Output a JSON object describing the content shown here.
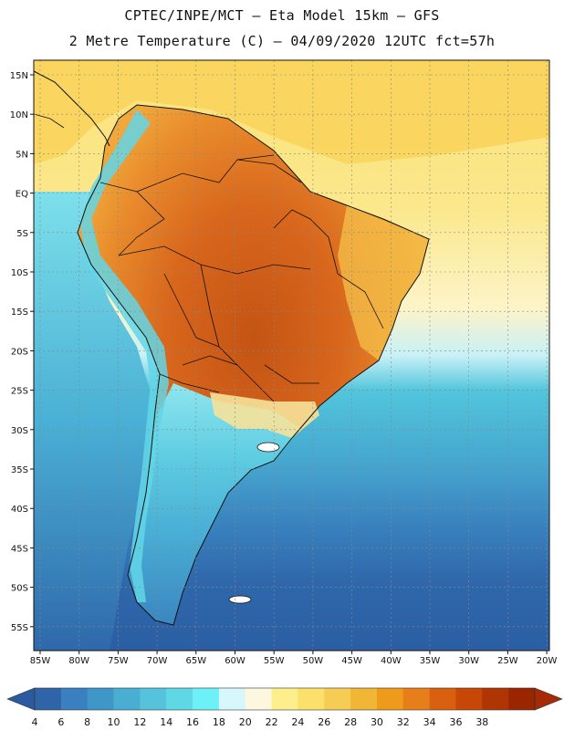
{
  "header": {
    "line1": "CPTEC/INPE/MCT –  Eta Model 15km – GFS",
    "line2": "2 Metre Temperature (C) – 04/09/2020 12UTC fct=57h"
  },
  "lat_labels": [
    "15N",
    "10N",
    "5N",
    "EQ",
    "5S",
    "10S",
    "15S",
    "20S",
    "25S",
    "30S",
    "35S",
    "40S",
    "45S",
    "50S",
    "55S"
  ],
  "lon_labels": [
    "85W",
    "80W",
    "75W",
    "70W",
    "65W",
    "60W",
    "55W",
    "50W",
    "45W",
    "40W",
    "35W",
    "30W",
    "25W",
    "20W"
  ],
  "colorbar": {
    "ticks": [
      "4",
      "6",
      "8",
      "10",
      "12",
      "14",
      "16",
      "18",
      "20",
      "22",
      "24",
      "26",
      "28",
      "30",
      "32",
      "34",
      "36",
      "38"
    ],
    "colors": [
      "#2f65a8",
      "#3a7fbf",
      "#3f97c8",
      "#4aaed3",
      "#55c3dc",
      "#5fd8e6",
      "#6cf1f8",
      "#d6f7fc",
      "#fdf7df",
      "#fdf08c",
      "#fbe06a",
      "#f5cd55",
      "#f1b635",
      "#ee9a1a",
      "#e67e1a",
      "#d8600f",
      "#c64706",
      "#b03504",
      "#9a2600"
    ],
    "under_color": "#2b5aa0",
    "over_color": "#a52a05"
  },
  "map_colors": {
    "ocean_cold": "#2c62a6",
    "ocean_mid": "#3d8fc5",
    "ocean_cool": "#4cb4d6",
    "ocean_warm": "#6ad3e2",
    "ocean_tropic": "#fbe58a",
    "land_hot": "#d4641e",
    "land_warm": "#ec9a36",
    "andes": "#6fe3ef"
  }
}
